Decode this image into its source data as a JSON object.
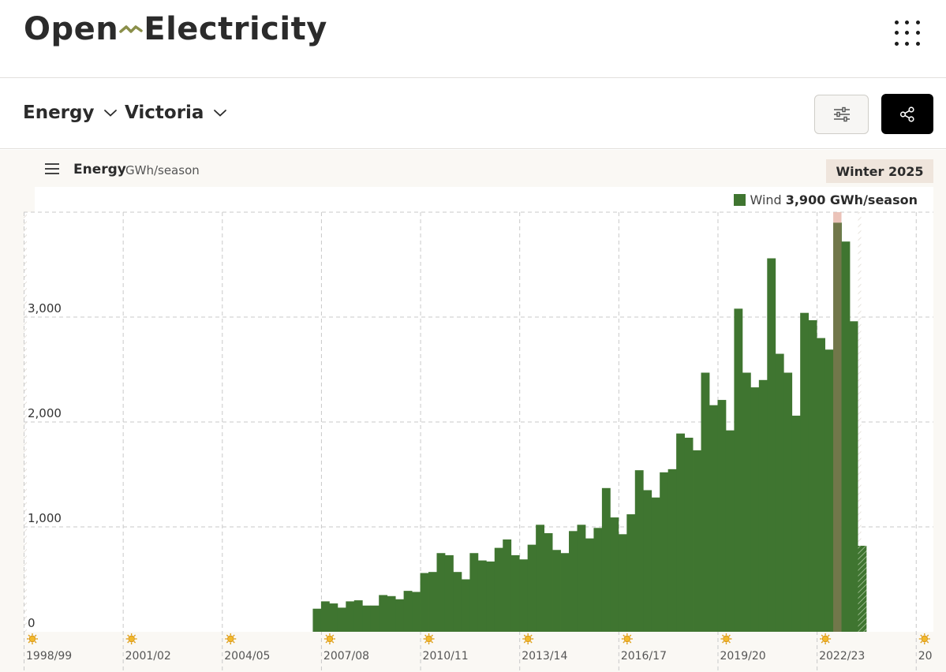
{
  "header": {
    "logo_part1": "Open",
    "logo_part2": "Electricity",
    "menu_icon": "dots-grid-icon"
  },
  "toolbar": {
    "metric_label": "Energy",
    "region_label": "Victoria",
    "filter_icon": "sliders-icon",
    "share_icon": "share-icon"
  },
  "chart_header": {
    "title": "Energy",
    "unit": "GWh/season",
    "period": "Winter 2025"
  },
  "legend": {
    "name": "Wind",
    "value": "3,900 GWh/season",
    "color": "#3f7530"
  },
  "chart_data": {
    "type": "bar",
    "title": "Energy",
    "unit": "GWh/season",
    "ylim": [
      0,
      4000
    ],
    "y_ticks": [
      0,
      1000,
      2000,
      3000
    ],
    "y_tick_labels": [
      "0",
      "1,000",
      "2,000",
      "3,000"
    ],
    "x_tick_labels": [
      "1998/99",
      "2001/02",
      "2004/05",
      "2007/08",
      "2010/11",
      "2013/14",
      "2016/17",
      "2019/20",
      "2022/23",
      "20"
    ],
    "x_tick_icon": "sun-icon",
    "seasons_start": "1998/99",
    "highlight_color": "#e8b8ad",
    "highlighted_period": "Winter 2025",
    "series": [
      {
        "name": "Wind",
        "color": "#3f7530",
        "values": [
          0,
          0,
          0,
          0,
          0,
          0,
          0,
          0,
          0,
          0,
          0,
          0,
          0,
          0,
          0,
          0,
          0,
          0,
          0,
          0,
          0,
          0,
          0,
          0,
          0,
          0,
          0,
          0,
          0,
          0,
          0,
          0,
          0,
          0,
          0,
          220,
          290,
          270,
          230,
          290,
          300,
          250,
          250,
          350,
          340,
          310,
          390,
          380,
          560,
          570,
          750,
          730,
          570,
          500,
          750,
          680,
          670,
          800,
          880,
          730,
          690,
          830,
          1020,
          940,
          780,
          750,
          960,
          1020,
          890,
          990,
          1370,
          1090,
          930,
          1120,
          1540,
          1350,
          1280,
          1520,
          1550,
          1890,
          1850,
          1730,
          2470,
          2160,
          2210,
          1920,
          3080,
          2470,
          2330,
          2400,
          3560,
          2650,
          2470,
          2060,
          3040,
          2970,
          2800,
          2690,
          3900,
          3720,
          2960,
          820
        ]
      }
    ],
    "partial_last_period": true
  }
}
